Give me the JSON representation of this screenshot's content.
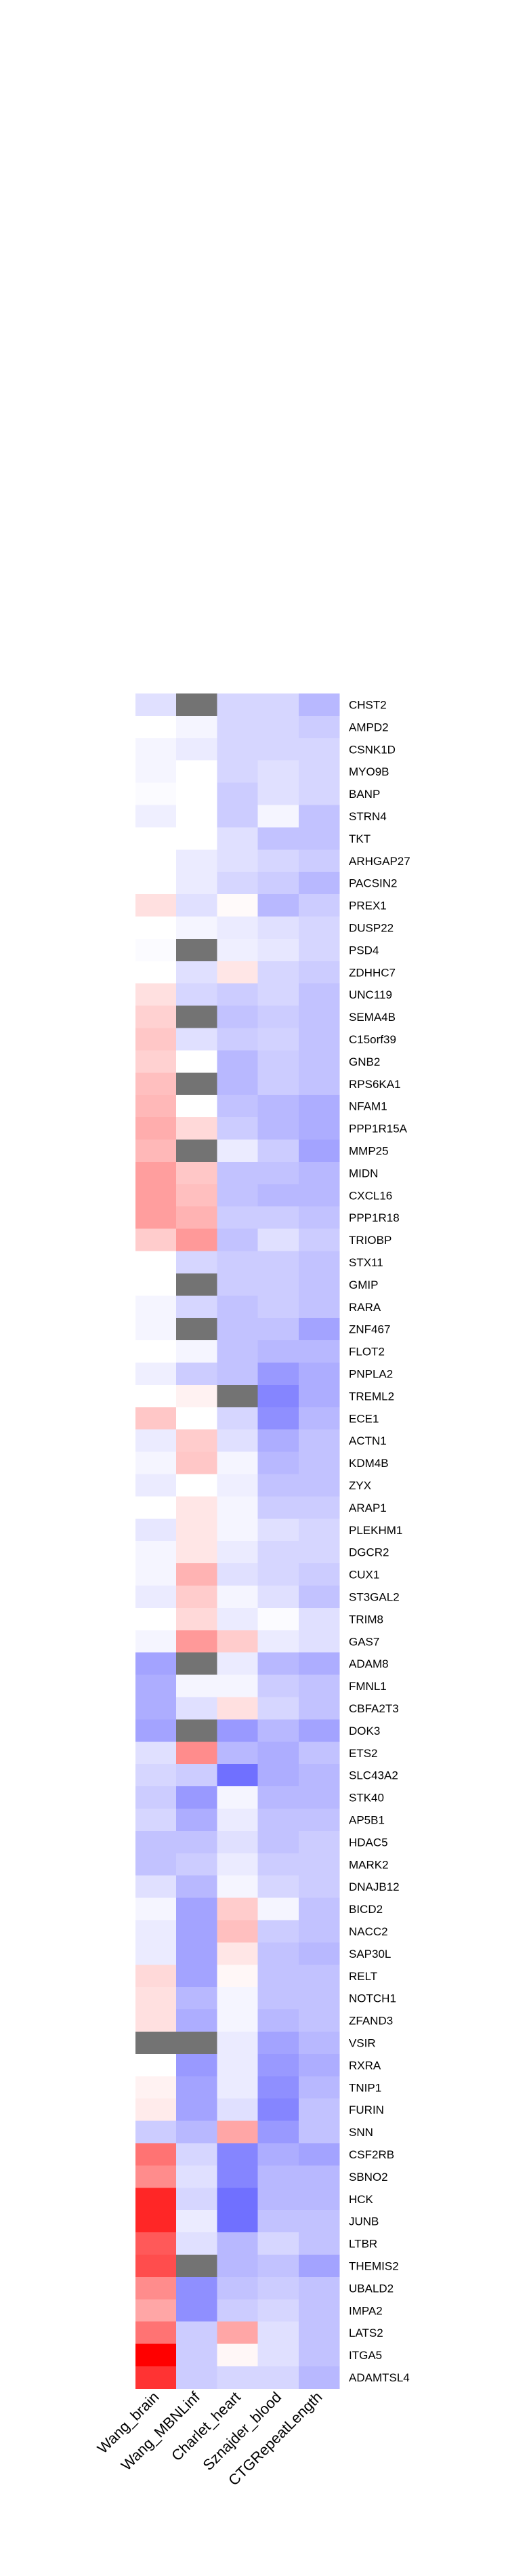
{
  "chart_data": {
    "type": "heatmap",
    "columns": [
      "Wang_brain",
      "Wang_MBNLinf",
      "Charlet_heart",
      "Sznajder_blood",
      "CTGRepeatLength"
    ],
    "rows": [
      "CHST2",
      "AMPD2",
      "CSNK1D",
      "MYO9B",
      "BANP",
      "STRN4",
      "TKT",
      "ARHGAP27",
      "PACSIN2",
      "PREX1",
      "DUSP22",
      "PSD4",
      "ZDHHC7",
      "UNC119",
      "SEMA4B",
      "C15orf39",
      "GNB2",
      "RPS6KA1",
      "NFAM1",
      "PPP1R15A",
      "MMP25",
      "MIDN",
      "CXCL16",
      "PPP1R18",
      "TRIOBP",
      "STX11",
      "GMIP",
      "RARA",
      "ZNF467",
      "FLOT2",
      "PNPLA2",
      "TREML2",
      "ECE1",
      "ACTN1",
      "KDM4B",
      "ZYX",
      "ARAP1",
      "PLEKHM1",
      "DGCR2",
      "CUX1",
      "ST3GAL2",
      "TRIM8",
      "GAS7",
      "ADAM8",
      "FMNL1",
      "CBFA2T3",
      "DOK3",
      "ETS2",
      "SLC43A2",
      "STK40",
      "AP5B1",
      "HDAC5",
      "MARK2",
      "DNAJB12",
      "BICD2",
      "NACC2",
      "SAP30L",
      "RELT",
      "NOTCH1",
      "ZFAND3",
      "VSIR",
      "RXRA",
      "TNIP1",
      "FURIN",
      "SNN",
      "CSF2RB",
      "SBNO2",
      "HCK",
      "JUNB",
      "LTBR",
      "THEMIS2",
      "UBALD2",
      "IMPA2",
      "LATS2",
      "ITGA5",
      "ADAMTSL4"
    ],
    "values": [
      [
        -0.15,
        null,
        -0.2,
        -0.2,
        -0.35
      ],
      [
        0,
        -0.05,
        -0.2,
        -0.2,
        -0.25
      ],
      [
        -0.05,
        -0.1,
        -0.2,
        -0.2,
        -0.2
      ],
      [
        -0.05,
        0,
        -0.2,
        -0.15,
        -0.2
      ],
      [
        -0.02,
        0,
        -0.25,
        -0.15,
        -0.2
      ],
      [
        -0.08,
        0,
        -0.25,
        -0.05,
        -0.3
      ],
      [
        0,
        0,
        -0.15,
        -0.3,
        -0.3
      ],
      [
        0,
        -0.1,
        -0.15,
        -0.2,
        -0.25
      ],
      [
        0,
        -0.1,
        -0.2,
        -0.25,
        -0.35
      ],
      [
        0.12,
        -0.15,
        0.02,
        -0.35,
        -0.25
      ],
      [
        0,
        -0.05,
        -0.1,
        -0.15,
        -0.2
      ],
      [
        -0.02,
        null,
        -0.08,
        -0.12,
        -0.2
      ],
      [
        0,
        -0.15,
        0.1,
        -0.2,
        -0.25
      ],
      [
        0.12,
        -0.2,
        -0.25,
        -0.2,
        -0.3
      ],
      [
        0.18,
        null,
        -0.3,
        -0.25,
        -0.3
      ],
      [
        0.22,
        -0.15,
        -0.25,
        -0.22,
        -0.3
      ],
      [
        0.18,
        0,
        -0.35,
        -0.25,
        -0.3
      ],
      [
        0.25,
        null,
        -0.35,
        -0.25,
        -0.3
      ],
      [
        0.28,
        0,
        -0.3,
        -0.35,
        -0.4
      ],
      [
        0.32,
        0.15,
        -0.25,
        -0.35,
        -0.4
      ],
      [
        0.28,
        null,
        -0.1,
        -0.25,
        -0.45
      ],
      [
        0.38,
        0.22,
        -0.3,
        -0.3,
        -0.35
      ],
      [
        0.38,
        0.25,
        -0.3,
        -0.35,
        -0.35
      ],
      [
        0.38,
        0.3,
        -0.25,
        -0.25,
        -0.3
      ],
      [
        0.2,
        0.4,
        -0.3,
        -0.15,
        -0.25
      ],
      [
        0,
        -0.2,
        -0.25,
        -0.25,
        -0.3
      ],
      [
        0,
        null,
        -0.25,
        -0.25,
        -0.3
      ],
      [
        -0.05,
        -0.2,
        -0.3,
        -0.25,
        -0.3
      ],
      [
        -0.05,
        null,
        -0.3,
        -0.3,
        -0.45
      ],
      [
        0,
        -0.05,
        -0.3,
        -0.35,
        -0.35
      ],
      [
        -0.08,
        -0.25,
        -0.3,
        -0.5,
        -0.4
      ],
      [
        0,
        0.05,
        null,
        -0.6,
        -0.4
      ],
      [
        0.22,
        0,
        -0.2,
        -0.55,
        -0.35
      ],
      [
        -0.1,
        0.2,
        -0.15,
        -0.4,
        -0.3
      ],
      [
        -0.05,
        0.22,
        -0.05,
        -0.35,
        -0.3
      ],
      [
        -0.1,
        0,
        -0.08,
        -0.3,
        -0.3
      ],
      [
        0,
        0.1,
        -0.05,
        -0.25,
        -0.25
      ],
      [
        -0.12,
        0.1,
        -0.05,
        -0.15,
        -0.2
      ],
      [
        -0.05,
        0.1,
        -0.1,
        -0.2,
        -0.2
      ],
      [
        -0.05,
        0.3,
        -0.15,
        -0.2,
        -0.25
      ],
      [
        -0.1,
        0.2,
        -0.05,
        -0.15,
        -0.3
      ],
      [
        0,
        0.15,
        -0.1,
        -0.02,
        -0.15
      ],
      [
        -0.05,
        0.4,
        0.2,
        -0.1,
        -0.15
      ],
      [
        -0.45,
        null,
        -0.1,
        -0.35,
        -0.4
      ],
      [
        -0.4,
        -0.05,
        -0.05,
        -0.25,
        -0.3
      ],
      [
        -0.4,
        -0.15,
        0.12,
        -0.2,
        -0.3
      ],
      [
        -0.45,
        null,
        -0.5,
        -0.35,
        -0.45
      ],
      [
        -0.15,
        0.45,
        -0.35,
        -0.4,
        -0.3
      ],
      [
        -0.2,
        -0.25,
        -0.7,
        -0.4,
        -0.35
      ],
      [
        -0.25,
        -0.5,
        -0.05,
        -0.35,
        -0.35
      ],
      [
        -0.2,
        -0.4,
        -0.1,
        -0.3,
        -0.3
      ],
      [
        -0.3,
        -0.3,
        -0.15,
        -0.3,
        -0.25
      ],
      [
        -0.3,
        -0.25,
        -0.1,
        -0.25,
        -0.25
      ],
      [
        -0.15,
        -0.35,
        -0.05,
        -0.2,
        -0.25
      ],
      [
        -0.05,
        -0.45,
        0.2,
        -0.05,
        -0.3
      ],
      [
        -0.1,
        -0.45,
        0.25,
        -0.25,
        -0.3
      ],
      [
        -0.1,
        -0.45,
        0.1,
        -0.3,
        -0.35
      ],
      [
        0.15,
        -0.45,
        0.03,
        -0.3,
        -0.3
      ],
      [
        0.12,
        -0.35,
        -0.05,
        -0.3,
        -0.3
      ],
      [
        0.12,
        -0.4,
        -0.05,
        -0.35,
        -0.3
      ],
      [
        null,
        null,
        -0.1,
        -0.45,
        -0.35
      ],
      [
        0,
        -0.5,
        -0.1,
        -0.5,
        -0.4
      ],
      [
        0.05,
        -0.45,
        -0.1,
        -0.55,
        -0.35
      ],
      [
        0.08,
        -0.45,
        -0.15,
        -0.6,
        -0.3
      ],
      [
        -0.25,
        -0.35,
        0.35,
        -0.5,
        -0.3
      ],
      [
        0.55,
        -0.2,
        -0.6,
        -0.4,
        -0.45
      ],
      [
        0.45,
        -0.15,
        -0.6,
        -0.35,
        -0.35
      ],
      [
        0.85,
        -0.2,
        -0.7,
        -0.35,
        -0.35
      ],
      [
        0.85,
        -0.1,
        -0.7,
        -0.3,
        -0.3
      ],
      [
        0.65,
        -0.15,
        -0.35,
        -0.2,
        -0.3
      ],
      [
        0.7,
        null,
        -0.35,
        -0.3,
        -0.45
      ],
      [
        0.45,
        -0.55,
        -0.3,
        -0.25,
        -0.3
      ],
      [
        0.35,
        -0.55,
        -0.25,
        -0.2,
        -0.3
      ],
      [
        0.55,
        -0.25,
        0.35,
        -0.15,
        -0.3
      ],
      [
        1.0,
        -0.25,
        0.03,
        -0.15,
        -0.3
      ],
      [
        0.8,
        -0.25,
        -0.2,
        -0.2,
        -0.35
      ]
    ],
    "missing_color": "#737373",
    "colors": {
      "negative": "#3333ff",
      "zero": "#ffffff",
      "positive": "#ff0000"
    },
    "vrange": [
      -1,
      1
    ],
    "legend": "none",
    "grid": false
  }
}
